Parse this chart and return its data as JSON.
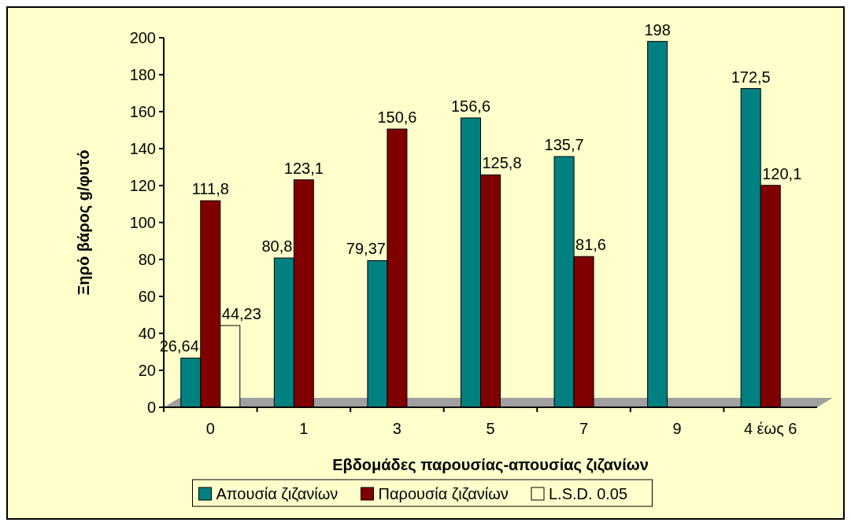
{
  "chart_data": {
    "type": "bar",
    "xlabel": "Εβδομάδες παρουσίας-απουσίας ζιζανίων",
    "ylabel": "Ξηρό βάρος g/φυτό",
    "categories": [
      "0",
      "1",
      "3",
      "5",
      "7",
      "9",
      "4 έως 6"
    ],
    "series": [
      {
        "name": "Απουσία ζιζανίων",
        "color": "#008080",
        "values": [
          26.64,
          80.8,
          79.37,
          156.6,
          135.7,
          198,
          172.5
        ],
        "value_labels": [
          "26,64",
          "80,8",
          "79,37",
          "156,6",
          "135,7",
          "198",
          "172,5"
        ]
      },
      {
        "name": "Παρουσία ζιζανίων",
        "color": "#800000",
        "values": [
          111.8,
          123.1,
          150.6,
          125.8,
          81.6,
          null,
          120.1
        ],
        "value_labels": [
          "111,8",
          "123,1",
          "150,6",
          "125,8",
          "81,6",
          null,
          "120,1"
        ]
      },
      {
        "name": "L.S.D. 0.05",
        "color": "#ffffcc",
        "values": [
          44.23,
          null,
          null,
          null,
          null,
          null,
          null
        ],
        "value_labels": [
          "44,23",
          null,
          null,
          null,
          null,
          null,
          null
        ]
      }
    ],
    "ylim": [
      0,
      200
    ],
    "yticks": [
      0,
      20,
      40,
      60,
      80,
      100,
      120,
      140,
      160,
      180,
      200
    ],
    "grid": false,
    "legend": "bottom"
  }
}
